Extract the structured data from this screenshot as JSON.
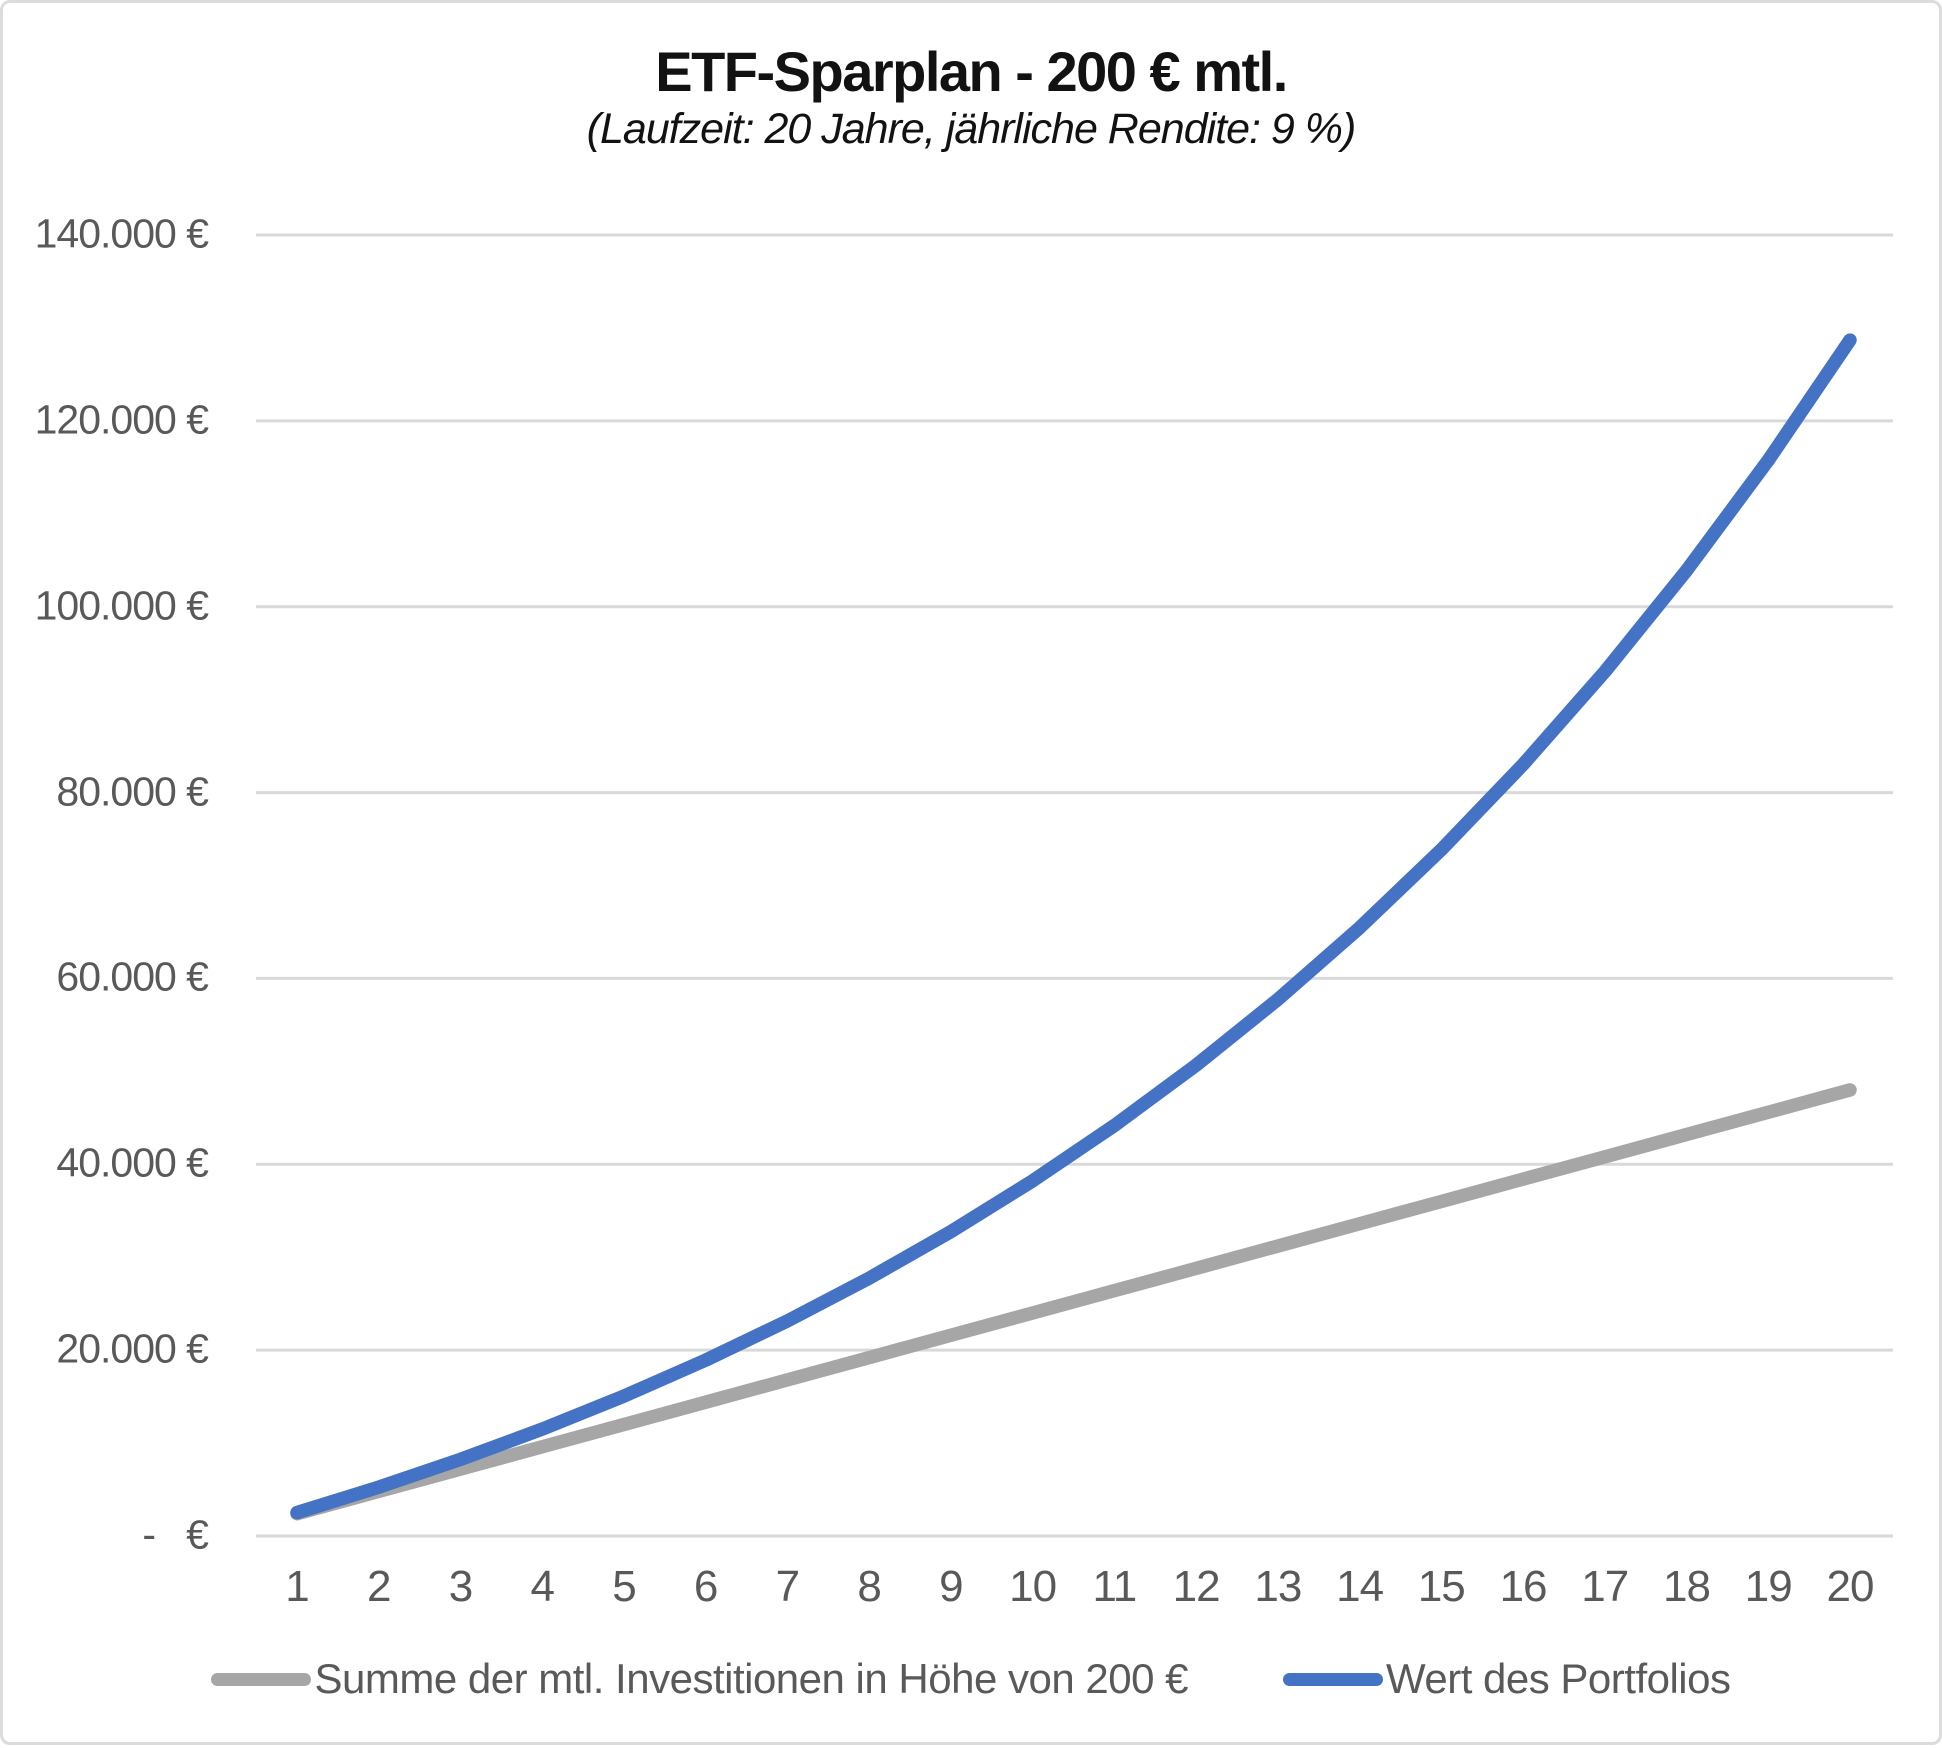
{
  "chart_data": {
    "type": "line",
    "title": "ETF-Sparplan - 200 € mtl.",
    "subtitle": "(Laufzeit: 20 Jahre, jährliche Rendite: 9 %)",
    "x": [
      1,
      2,
      3,
      4,
      5,
      6,
      7,
      8,
      9,
      10,
      11,
      12,
      13,
      14,
      15,
      16,
      17,
      18,
      19,
      20
    ],
    "xtick_labels": [
      "1",
      "2",
      "3",
      "4",
      "5",
      "6",
      "7",
      "8",
      "9",
      "10",
      "11",
      "12",
      "13",
      "14",
      "15",
      "16",
      "17",
      "18",
      "19",
      "20"
    ],
    "series": [
      {
        "name": "Summe der mtl. Investitionen in Höhe von 200 €",
        "color": "#A6A6A6",
        "values": [
          2400,
          4800,
          7200,
          9600,
          12000,
          14400,
          16800,
          19200,
          21600,
          24000,
          26400,
          28800,
          31200,
          33600,
          36000,
          38400,
          40800,
          43200,
          45600,
          48000
        ]
      },
      {
        "name": "Wert des Portfolios",
        "color": "#4472C4",
        "values": [
          2516,
          5257,
          8246,
          11504,
          15055,
          18925,
          23144,
          27742,
          32754,
          38218,
          44173,
          50664,
          57739,
          65451,
          73857,
          83020,
          93007,
          103894,
          115759,
          128693
        ]
      }
    ],
    "ylim": [
      0,
      140000
    ],
    "ytick_step": 20000,
    "ytick_labels": [
      "-   €",
      "20.000 €",
      "40.000 €",
      "60.000 €",
      "80.000 €",
      "100.000 €",
      "120.000 €",
      "140.000 €"
    ],
    "xlabel": "",
    "ylabel": "",
    "grid": "horizontal",
    "legend_position": "bottom",
    "colors": {
      "grid": "#D9D9D9",
      "axis_text": "#595959",
      "title_text": "#121212",
      "background": "#FFFFFF",
      "border": "#DCDCDC"
    }
  }
}
